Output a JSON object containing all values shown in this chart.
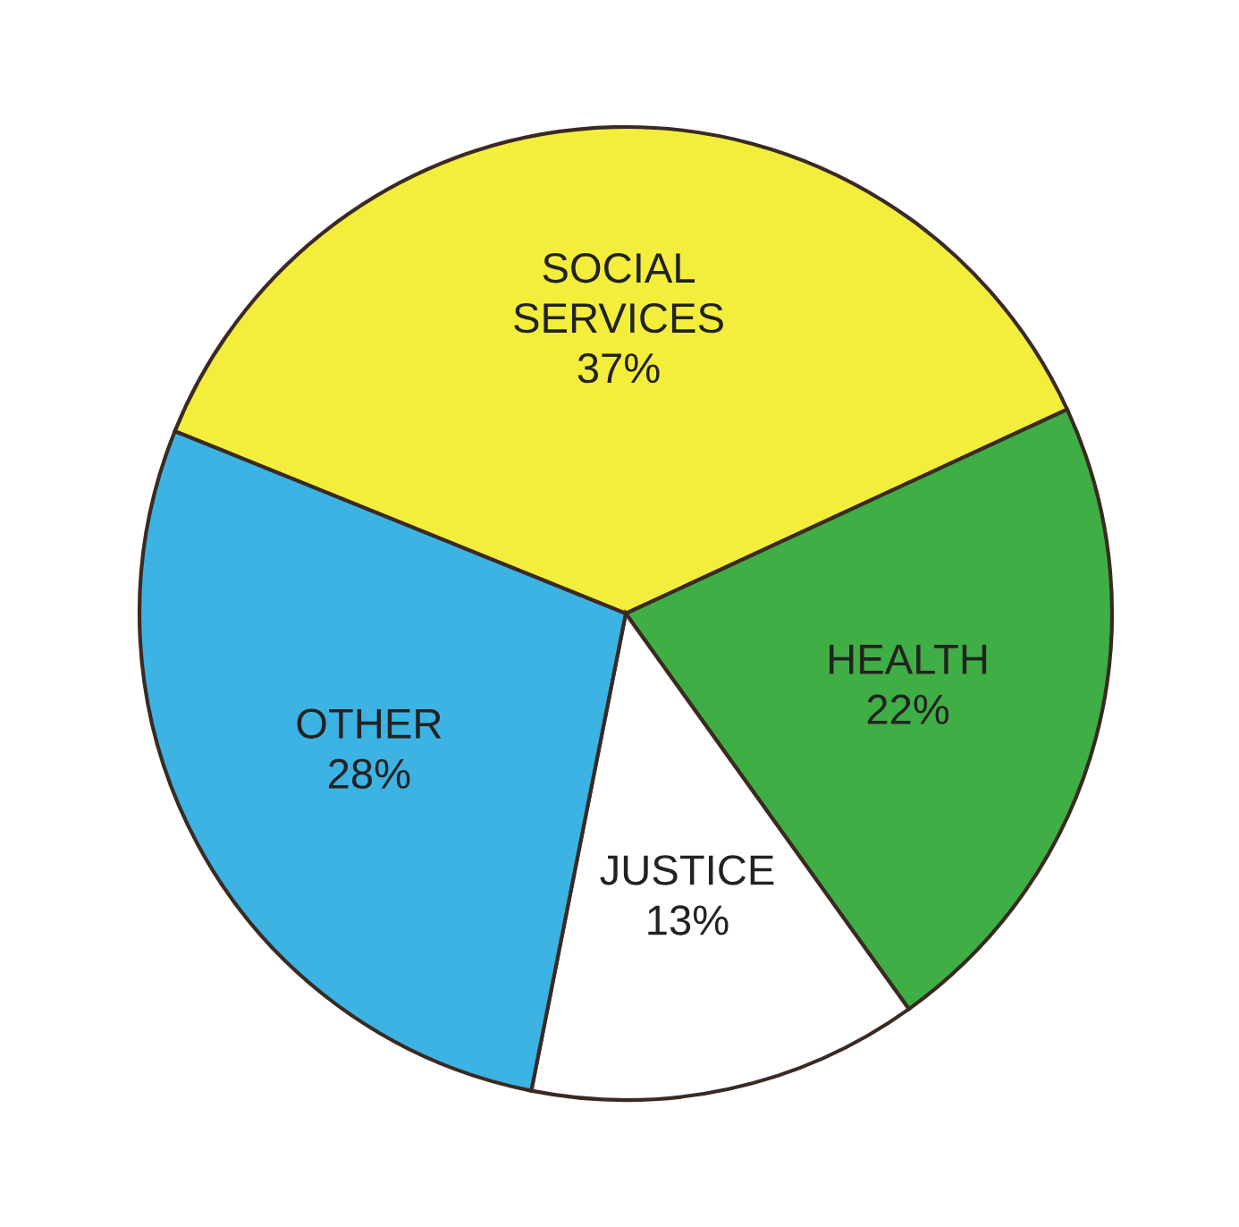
{
  "chart_data": {
    "type": "pie",
    "categories": [
      "SOCIAL SERVICES",
      "HEALTH",
      "JUSTICE",
      "OTHER"
    ],
    "values": [
      37,
      22,
      13,
      28
    ],
    "value_labels": [
      "37%",
      "22%",
      "13%",
      "28%"
    ],
    "colors": [
      "#f3ee3c",
      "#3fae45",
      "#ffffff",
      "#3db3e3"
    ]
  }
}
